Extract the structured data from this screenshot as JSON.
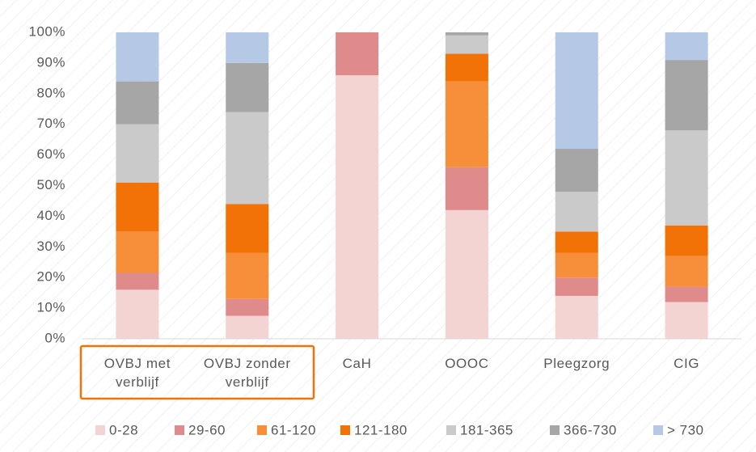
{
  "chart_data": {
    "type": "stacked_bar",
    "categories": [
      "OVBJ met verblijf",
      "OVBJ zonder verblijf",
      "CaH",
      "OOOC",
      "Pleegzorg",
      "CIG"
    ],
    "series": [
      {
        "name": "0-28",
        "color": "#f4d3d3",
        "values": [
          16,
          7.5,
          86,
          42,
          14,
          12
        ]
      },
      {
        "name": "29-60",
        "color": "#e08b8b",
        "values": [
          5.5,
          5.5,
          14,
          14,
          6,
          5
        ]
      },
      {
        "name": "61-120",
        "color": "#f68e3a",
        "values": [
          13.5,
          15,
          0,
          28,
          8,
          10
        ]
      },
      {
        "name": "121-180",
        "color": "#f27208",
        "values": [
          16,
          16,
          0,
          9,
          7,
          10
        ]
      },
      {
        "name": "181-365",
        "color": "#cacaca",
        "values": [
          19,
          30,
          0,
          6,
          13,
          31
        ]
      },
      {
        "name": "366-730",
        "color": "#a6a6a6",
        "values": [
          14,
          16,
          0,
          1,
          14,
          23
        ]
      },
      {
        "name": "> 730",
        "color": "#b5c8e6",
        "values": [
          16,
          10,
          0,
          0,
          38,
          9
        ]
      }
    ],
    "ylim": [
      0,
      100
    ],
    "yticks": [
      {
        "value": 0,
        "label": "0%"
      },
      {
        "value": 10,
        "label": "10%"
      },
      {
        "value": 20,
        "label": "20%"
      },
      {
        "value": 30,
        "label": "30%"
      },
      {
        "value": 40,
        "label": "40%"
      },
      {
        "value": 50,
        "label": "50%"
      },
      {
        "value": 60,
        "label": "60%"
      },
      {
        "value": 70,
        "label": "70%"
      },
      {
        "value": 80,
        "label": "80%"
      },
      {
        "value": 90,
        "label": "90%"
      },
      {
        "value": 100,
        "label": "100%"
      }
    ],
    "legend": "bottom"
  }
}
